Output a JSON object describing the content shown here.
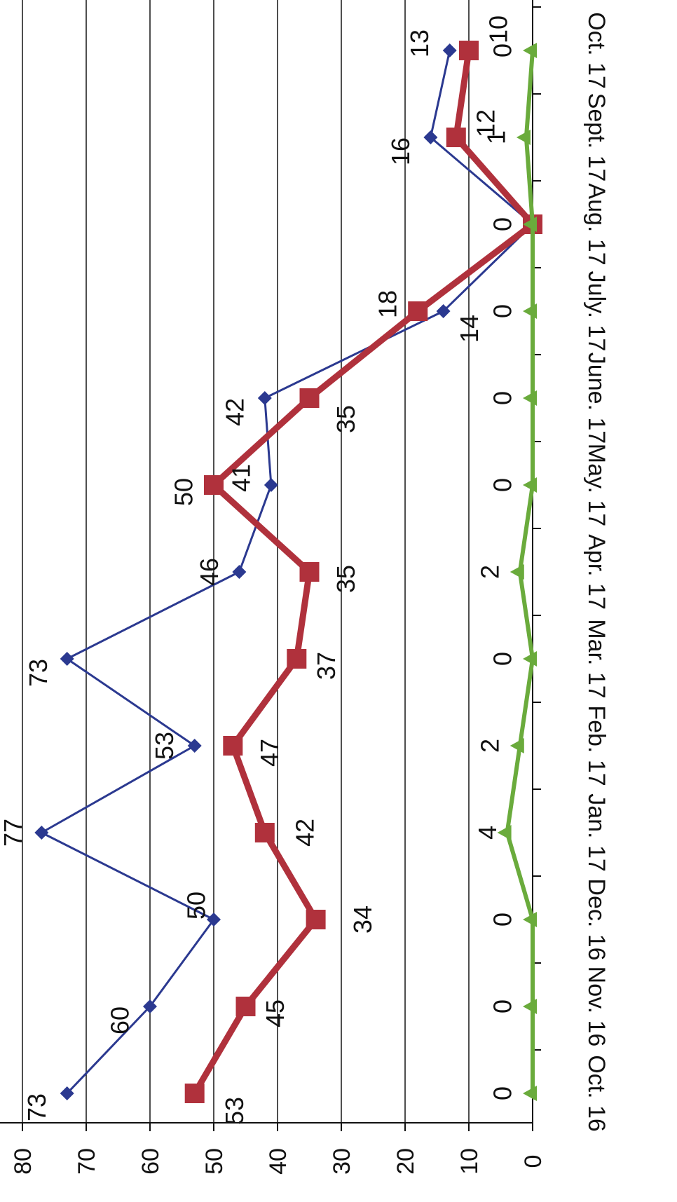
{
  "chart_data": {
    "type": "line",
    "orientation": "rotated-90",
    "categories": [
      "Oct. 16",
      "Nov. 16",
      "Dec. 16",
      "Jan. 17",
      "Feb. 17",
      "Mar. 17",
      "Apr. 17",
      "May. 17",
      "June. 17",
      "July. 17",
      "Aug. 17",
      "Sept. 17",
      "Oct. 17"
    ],
    "ylim": [
      0,
      80
    ],
    "yticks": [
      0,
      10,
      20,
      30,
      40,
      50,
      60,
      70,
      80
    ],
    "grid": true,
    "legend": "none",
    "series": [
      {
        "values": [
          73,
          60,
          50,
          77,
          53,
          73,
          46,
          41,
          42,
          14,
          0,
          16,
          13
        ],
        "color": "#2b3990",
        "marker": "diamond"
      },
      {
        "values": [
          53,
          45,
          34,
          42,
          47,
          37,
          35,
          50,
          35,
          18,
          0,
          12,
          10
        ],
        "color": "#b0313c",
        "marker": "square"
      },
      {
        "values": [
          0,
          0,
          0,
          4,
          2,
          0,
          2,
          0,
          0,
          0,
          0,
          1,
          0
        ],
        "color": "#6aab3c",
        "marker": "triangle"
      }
    ],
    "data_labels": [
      [
        "73",
        "60",
        "50",
        "77",
        "53",
        "73",
        "46",
        "41",
        "42",
        "14",
        "",
        "16",
        "13"
      ],
      [
        "53",
        "45",
        "34",
        "42",
        "47",
        "37",
        "35",
        "50",
        "35",
        "18",
        "",
        "12",
        "10"
      ],
      [
        "0",
        "0",
        "0",
        "4",
        "2",
        "0",
        "2",
        "0",
        "0",
        "0",
        "0",
        "1",
        "0"
      ]
    ]
  }
}
